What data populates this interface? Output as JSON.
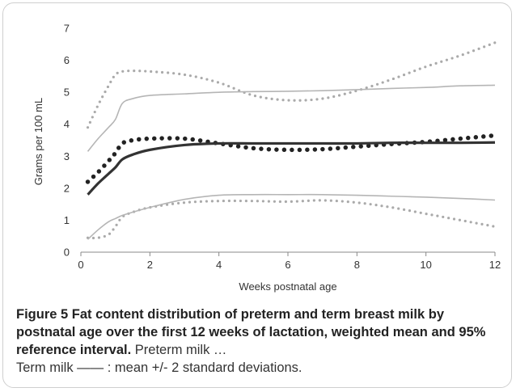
{
  "chart_data": {
    "type": "line",
    "xlabel": "Weeks postnatal age",
    "ylabel": "Grams per 100 mL",
    "xlim": [
      0,
      12
    ],
    "ylim": [
      0,
      7
    ],
    "xticks": [
      "0",
      "2",
      "4",
      "6",
      "8",
      "10",
      "12"
    ],
    "yticks": [
      "0",
      "1",
      "2",
      "3",
      "4",
      "5",
      "6",
      "7"
    ],
    "grid": false,
    "legend": "none",
    "series": [
      {
        "group": "preterm",
        "stat": "mean",
        "style": "dotted",
        "weight": "heavy",
        "color": "#222222",
        "x": [
          0.2,
          0.5,
          0.8,
          1.0,
          1.2,
          1.5,
          2,
          3,
          4,
          5,
          6,
          7,
          8,
          9,
          10,
          11,
          12
        ],
        "y": [
          2.2,
          2.5,
          2.85,
          3.1,
          3.4,
          3.5,
          3.55,
          3.55,
          3.4,
          3.25,
          3.2,
          3.22,
          3.3,
          3.38,
          3.45,
          3.55,
          3.65
        ]
      },
      {
        "group": "preterm",
        "stat": "upper",
        "style": "dotted",
        "weight": "light",
        "color": "#aaaaaa",
        "x": [
          0.2,
          0.5,
          0.8,
          1.0,
          1.2,
          1.5,
          2,
          3,
          4,
          5,
          6,
          7,
          8,
          9,
          10,
          11,
          12
        ],
        "y": [
          3.9,
          4.6,
          5.2,
          5.55,
          5.65,
          5.67,
          5.65,
          5.55,
          5.3,
          4.9,
          4.75,
          4.8,
          5.05,
          5.4,
          5.8,
          6.15,
          6.55
        ]
      },
      {
        "group": "preterm",
        "stat": "lower",
        "style": "dotted",
        "weight": "light",
        "color": "#aaaaaa",
        "x": [
          0.2,
          0.5,
          0.8,
          1.0,
          1.2,
          1.5,
          2,
          3,
          4,
          5,
          6,
          7,
          8,
          9,
          10,
          11,
          12
        ],
        "y": [
          0.45,
          0.45,
          0.55,
          0.8,
          1.1,
          1.25,
          1.4,
          1.55,
          1.6,
          1.6,
          1.58,
          1.62,
          1.55,
          1.4,
          1.2,
          1.0,
          0.8
        ]
      },
      {
        "group": "term",
        "stat": "mean",
        "style": "solid",
        "weight": "heavy",
        "color": "#333333",
        "x": [
          0.2,
          0.5,
          0.8,
          1.0,
          1.2,
          1.5,
          2,
          3,
          4,
          5,
          6,
          7,
          8,
          9,
          10,
          11,
          12
        ],
        "y": [
          1.8,
          2.15,
          2.45,
          2.65,
          2.9,
          3.05,
          3.2,
          3.35,
          3.4,
          3.4,
          3.4,
          3.4,
          3.4,
          3.42,
          3.42,
          3.42,
          3.43
        ]
      },
      {
        "group": "term",
        "stat": "upper",
        "style": "solid",
        "weight": "light",
        "color": "#b5b5b5",
        "x": [
          0.2,
          0.5,
          0.8,
          1.0,
          1.2,
          1.5,
          2,
          3,
          4,
          5,
          6,
          7,
          8,
          9,
          10,
          11,
          12
        ],
        "y": [
          3.15,
          3.55,
          3.9,
          4.15,
          4.65,
          4.8,
          4.9,
          4.95,
          5.0,
          5.02,
          5.03,
          5.05,
          5.08,
          5.12,
          5.15,
          5.2,
          5.22
        ]
      },
      {
        "group": "term",
        "stat": "lower",
        "style": "solid",
        "weight": "light",
        "color": "#b5b5b5",
        "x": [
          0.2,
          0.5,
          0.8,
          1.0,
          1.2,
          1.5,
          2,
          3,
          4,
          5,
          6,
          7,
          8,
          9,
          10,
          11,
          12
        ],
        "y": [
          0.4,
          0.7,
          0.95,
          1.05,
          1.15,
          1.25,
          1.4,
          1.65,
          1.78,
          1.8,
          1.8,
          1.8,
          1.78,
          1.75,
          1.72,
          1.68,
          1.63
        ]
      }
    ]
  },
  "caption": {
    "title": "Figure 5 Fat content distribution of preterm and term breast milk by postnatal age over the first 12 weeks of lactation, weighted mean and 95% reference interval.",
    "preterm_text": "Preterm milk …",
    "term_text": "Term milk —— : mean +/- 2 standard deviations."
  }
}
